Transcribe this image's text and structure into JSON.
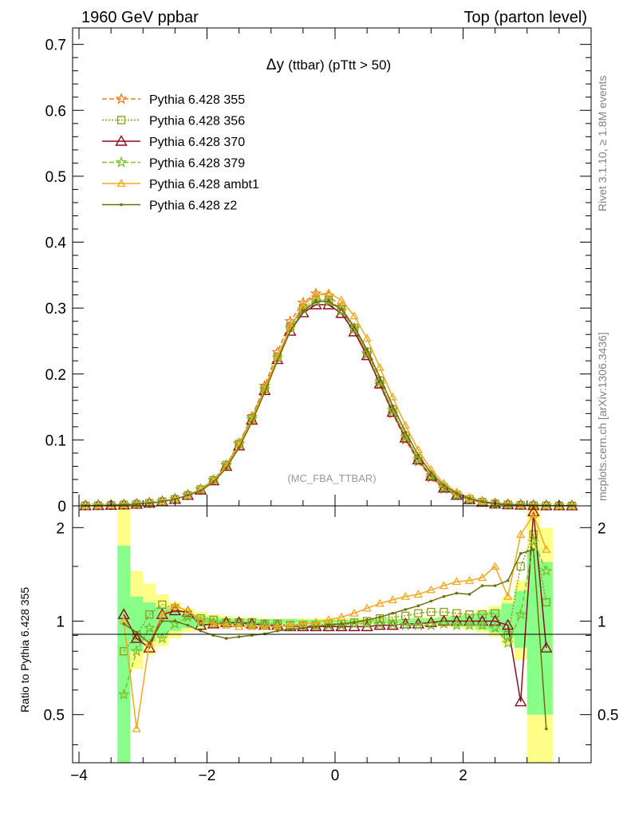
{
  "header": {
    "left": "1960 GeV ppbar",
    "right": "Top (parton level)"
  },
  "side_labels": {
    "rivet": "Rivet 3.1.10, ≥ 1.8M events",
    "mcplots": "mcplots.cern.ch [arXiv:1306.3436]"
  },
  "colors": {
    "s355": "#f07c20",
    "s356": "#8a9c16",
    "s370": "#8b0c22",
    "s379": "#7cbf2a",
    "ambt1": "#f0a820",
    "z2": "#6e7010",
    "band_yellow": "#ffff88",
    "band_green": "#88ff88"
  },
  "chart_data": [
    {
      "type": "line",
      "title": "Δy (ttbar) (pTtt > 50)",
      "watermark": "(MC_FBA_TTBAR)",
      "xlim": [
        -4.1,
        4.0
      ],
      "ylim": [
        0,
        0.725
      ],
      "yticks": [
        0,
        0.1,
        0.2,
        0.3,
        0.4,
        0.5,
        0.6,
        0.7
      ],
      "ytick_labels": [
        "0",
        "0.1",
        "0.2",
        "0.3",
        "0.4",
        "0.5",
        "0.6",
        "0.7"
      ],
      "legend_position": "top-left",
      "x": [
        -3.9,
        -3.7,
        -3.5,
        -3.3,
        -3.1,
        -2.9,
        -2.7,
        -2.5,
        -2.3,
        -2.1,
        -1.9,
        -1.7,
        -1.5,
        -1.3,
        -1.1,
        -0.9,
        -0.7,
        -0.5,
        -0.3,
        -0.1,
        0.1,
        0.3,
        0.5,
        0.7,
        0.9,
        1.1,
        1.3,
        1.5,
        1.7,
        1.9,
        2.1,
        2.3,
        2.5,
        2.7,
        2.9,
        3.1,
        3.3,
        3.5,
        3.7
      ],
      "series": [
        {
          "name": "Pythia 6.428 355",
          "color": "#f07c20",
          "dash": "6,3",
          "marker": "star",
          "values": [
            0.0002,
            0.0005,
            0.0009,
            0.0015,
            0.0025,
            0.004,
            0.0065,
            0.01,
            0.016,
            0.025,
            0.039,
            0.062,
            0.095,
            0.135,
            0.182,
            0.233,
            0.28,
            0.308,
            0.322,
            0.319,
            0.302,
            0.27,
            0.23,
            0.184,
            0.14,
            0.1,
            0.067,
            0.043,
            0.026,
            0.016,
            0.0095,
            0.0055,
            0.003,
            0.0018,
            0.0011,
            0.0006,
            0.0003,
            0.0002,
            0.0001
          ]
        },
        {
          "name": "Pythia 6.428 356",
          "color": "#8a9c16",
          "dash": "2,2",
          "marker": "square",
          "values": [
            0.0002,
            0.0005,
            0.0009,
            0.0015,
            0.0025,
            0.004,
            0.0065,
            0.01,
            0.016,
            0.025,
            0.039,
            0.062,
            0.094,
            0.133,
            0.178,
            0.226,
            0.272,
            0.3,
            0.313,
            0.312,
            0.298,
            0.27,
            0.234,
            0.19,
            0.146,
            0.106,
            0.072,
            0.046,
            0.028,
            0.017,
            0.01,
            0.0058,
            0.0032,
            0.0019,
            0.0011,
            0.0006,
            0.0003,
            0.0002,
            0.0001
          ]
        },
        {
          "name": "Pythia 6.428 370",
          "color": "#8b0c22",
          "dash": "",
          "marker": "triangle",
          "values": [
            0.0002,
            0.0005,
            0.0009,
            0.0015,
            0.0025,
            0.004,
            0.0065,
            0.01,
            0.016,
            0.024,
            0.038,
            0.06,
            0.091,
            0.13,
            0.175,
            0.222,
            0.265,
            0.293,
            0.305,
            0.305,
            0.292,
            0.264,
            0.228,
            0.185,
            0.142,
            0.103,
            0.07,
            0.045,
            0.027,
            0.016,
            0.0095,
            0.0055,
            0.003,
            0.0018,
            0.0011,
            0.0006,
            0.0003,
            0.0002,
            0.0001
          ]
        },
        {
          "name": "Pythia 6.428 379",
          "color": "#7cbf2a",
          "dash": "6,3",
          "marker": "star",
          "values": [
            0.0002,
            0.0005,
            0.0009,
            0.0015,
            0.0025,
            0.004,
            0.0065,
            0.01,
            0.016,
            0.025,
            0.039,
            0.061,
            0.093,
            0.132,
            0.177,
            0.225,
            0.27,
            0.298,
            0.311,
            0.31,
            0.296,
            0.268,
            0.232,
            0.188,
            0.145,
            0.105,
            0.071,
            0.046,
            0.028,
            0.017,
            0.01,
            0.0057,
            0.0031,
            0.0018,
            0.0011,
            0.0006,
            0.0003,
            0.0002,
            0.0001
          ]
        },
        {
          "name": "Pythia 6.428 ambt1",
          "color": "#f0a820",
          "dash": "",
          "marker": "triangle-small",
          "values": [
            0.0002,
            0.0005,
            0.0009,
            0.0015,
            0.0025,
            0.004,
            0.0065,
            0.01,
            0.016,
            0.025,
            0.038,
            0.06,
            0.092,
            0.13,
            0.176,
            0.225,
            0.272,
            0.304,
            0.32,
            0.323,
            0.312,
            0.288,
            0.254,
            0.21,
            0.165,
            0.122,
            0.085,
            0.055,
            0.034,
            0.021,
            0.0125,
            0.0072,
            0.004,
            0.0023,
            0.0013,
            0.0007,
            0.0004,
            0.0002,
            0.0001
          ]
        },
        {
          "name": "Pythia 6.428 z2",
          "color": "#6e7010",
          "dash": "",
          "marker": "dot",
          "values": [
            0.0002,
            0.0005,
            0.0009,
            0.0015,
            0.0025,
            0.004,
            0.0065,
            0.01,
            0.016,
            0.023,
            0.036,
            0.057,
            0.088,
            0.127,
            0.172,
            0.22,
            0.265,
            0.295,
            0.31,
            0.31,
            0.298,
            0.272,
            0.237,
            0.195,
            0.152,
            0.112,
            0.077,
            0.05,
            0.031,
            0.019,
            0.011,
            0.0064,
            0.0035,
            0.002,
            0.0012,
            0.0007,
            0.0003,
            0.0002,
            0.0001
          ]
        }
      ]
    },
    {
      "type": "line",
      "ylabel": "Ratio to Pythia 6.428 355",
      "xlim": [
        -4.1,
        4.0
      ],
      "ylim": [
        0.35,
        2.35
      ],
      "log_y": true,
      "xticks": [
        -4,
        -2,
        0,
        2
      ],
      "xtick_labels": [
        "−4",
        "−2",
        "0",
        "2"
      ],
      "yticks": [
        0.5,
        1,
        2
      ],
      "ytick_labels": [
        "0.5",
        "1",
        "2"
      ],
      "reference_line": 1,
      "x": [
        -3.3,
        -3.1,
        -2.9,
        -2.7,
        -2.5,
        -2.3,
        -2.1,
        -1.9,
        -1.7,
        -1.5,
        -1.3,
        -1.1,
        -0.9,
        -0.7,
        -0.5,
        -0.3,
        -0.1,
        0.1,
        0.3,
        0.5,
        0.7,
        0.9,
        1.1,
        1.3,
        1.5,
        1.7,
        1.9,
        2.1,
        2.3,
        2.5,
        2.7,
        2.9,
        3.1,
        3.3
      ],
      "band_yellow": [
        [
          0.35,
          2.35
        ],
        [
          0.7,
          1.45
        ],
        [
          0.78,
          1.32
        ],
        [
          0.83,
          1.22
        ],
        [
          0.88,
          1.15
        ],
        [
          0.92,
          1.1
        ],
        [
          0.94,
          1.07
        ],
        [
          0.95,
          1.05
        ],
        [
          0.96,
          1.04
        ],
        [
          0.97,
          1.03
        ],
        [
          0.97,
          1.03
        ],
        [
          0.98,
          1.02
        ],
        [
          0.98,
          1.02
        ],
        [
          0.98,
          1.02
        ],
        [
          0.98,
          1.02
        ],
        [
          0.98,
          1.02
        ],
        [
          0.98,
          1.02
        ],
        [
          0.98,
          1.02
        ],
        [
          0.98,
          1.02
        ],
        [
          0.98,
          1.02
        ],
        [
          0.98,
          1.02
        ],
        [
          0.98,
          1.02
        ],
        [
          0.98,
          1.02
        ],
        [
          0.97,
          1.03
        ],
        [
          0.97,
          1.03
        ],
        [
          0.96,
          1.04
        ],
        [
          0.95,
          1.05
        ],
        [
          0.94,
          1.06
        ],
        [
          0.92,
          1.09
        ],
        [
          0.89,
          1.12
        ],
        [
          0.84,
          1.2
        ],
        [
          0.75,
          1.35
        ],
        [
          0.35,
          2.35
        ],
        [
          0.35,
          2.0
        ]
      ],
      "band_green": [
        [
          0.35,
          1.75
        ],
        [
          0.8,
          1.2
        ],
        [
          0.86,
          1.15
        ],
        [
          0.9,
          1.11
        ],
        [
          0.93,
          1.08
        ],
        [
          0.95,
          1.05
        ],
        [
          0.96,
          1.04
        ],
        [
          0.97,
          1.03
        ],
        [
          0.98,
          1.02
        ],
        [
          0.98,
          1.02
        ],
        [
          0.985,
          1.015
        ],
        [
          0.985,
          1.015
        ],
        [
          0.985,
          1.015
        ],
        [
          0.985,
          1.015
        ],
        [
          0.99,
          1.01
        ],
        [
          0.99,
          1.01
        ],
        [
          0.99,
          1.01
        ],
        [
          0.99,
          1.01
        ],
        [
          0.99,
          1.01
        ],
        [
          0.99,
          1.01
        ],
        [
          0.985,
          1.015
        ],
        [
          0.985,
          1.015
        ],
        [
          0.985,
          1.015
        ],
        [
          0.98,
          1.02
        ],
        [
          0.98,
          1.02
        ],
        [
          0.97,
          1.03
        ],
        [
          0.96,
          1.04
        ],
        [
          0.96,
          1.05
        ],
        [
          0.94,
          1.07
        ],
        [
          0.92,
          1.09
        ],
        [
          0.88,
          1.14
        ],
        [
          0.82,
          1.25
        ],
        [
          0.5,
          1.7
        ],
        [
          0.5,
          1.55
        ]
      ],
      "series": [
        {
          "name": "Pythia 6.428 356",
          "color": "#8a9c16",
          "dash": "2,2",
          "marker": "square",
          "values": [
            0.8,
            0.9,
            1.05,
            1.13,
            1.1,
            1.05,
            1.02,
            1.01,
            0.99,
            0.99,
            0.99,
            0.98,
            0.98,
            0.97,
            0.97,
            0.97,
            0.98,
            0.98,
            0.99,
            1.0,
            1.02,
            1.03,
            1.04,
            1.06,
            1.07,
            1.07,
            1.06,
            1.05,
            1.05,
            1.06,
            0.9,
            1.5,
            1.9,
            1.15
          ]
        },
        {
          "name": "Pythia 6.428 370",
          "color": "#8b0c22",
          "dash": "",
          "marker": "triangle",
          "values": [
            1.05,
            0.88,
            0.82,
            1.05,
            1.08,
            1.07,
            0.97,
            0.98,
            0.99,
            0.99,
            0.98,
            0.97,
            0.97,
            0.96,
            0.96,
            0.96,
            0.96,
            0.96,
            0.96,
            0.96,
            0.97,
            0.97,
            0.98,
            0.98,
            0.99,
            1.0,
            1.0,
            1.0,
            1.0,
            1.0,
            0.97,
            0.55,
            2.25,
            0.82
          ]
        },
        {
          "name": "Pythia 6.428 379",
          "color": "#7cbf2a",
          "dash": "6,3",
          "marker": "star",
          "values": [
            0.58,
            0.8,
            0.95,
            0.88,
            0.98,
            1.03,
            1.0,
            0.99,
            0.98,
            0.98,
            0.97,
            0.97,
            0.97,
            0.96,
            0.97,
            0.97,
            0.97,
            0.97,
            0.98,
            0.98,
            0.98,
            0.98,
            0.97,
            0.97,
            0.97,
            0.98,
            0.97,
            0.97,
            0.97,
            0.95,
            0.85,
            1.05,
            1.8,
            1.45
          ]
        },
        {
          "name": "Pythia 6.428 ambt1",
          "color": "#f0a820",
          "dash": "",
          "marker": "triangle-small",
          "values": [
            1.0,
            0.45,
            0.85,
            1.05,
            1.12,
            1.08,
            1.01,
            0.98,
            0.97,
            0.96,
            0.96,
            0.96,
            0.96,
            0.97,
            0.98,
            0.99,
            1.01,
            1.03,
            1.06,
            1.1,
            1.14,
            1.17,
            1.2,
            1.22,
            1.26,
            1.3,
            1.34,
            1.35,
            1.38,
            1.5,
            1.2,
            1.9,
            2.2,
            1.7
          ]
        },
        {
          "name": "Pythia 6.428 z2",
          "color": "#6e7010",
          "dash": "",
          "marker": "dot",
          "values": [
            0.98,
            0.92,
            0.85,
            1.0,
            1.0,
            0.97,
            0.93,
            0.9,
            0.88,
            0.89,
            0.9,
            0.91,
            0.93,
            0.94,
            0.95,
            0.96,
            0.97,
            0.98,
            0.99,
            1.01,
            1.03,
            1.06,
            1.09,
            1.12,
            1.16,
            1.2,
            1.23,
            1.22,
            1.3,
            1.3,
            1.35,
            1.65,
            1.7,
            0.45
          ]
        }
      ]
    }
  ]
}
